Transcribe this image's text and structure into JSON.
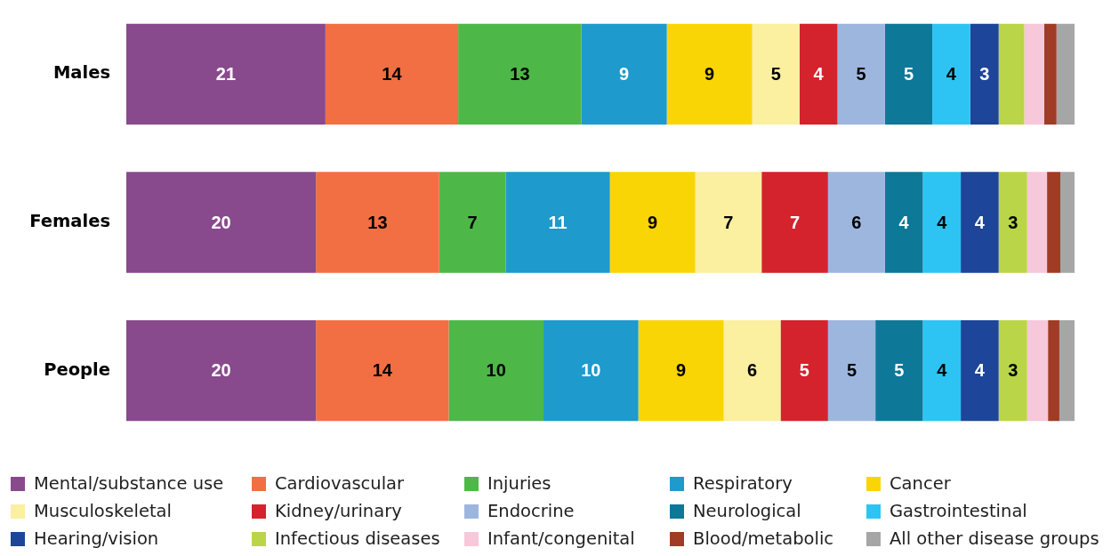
{
  "chart_data": {
    "type": "bar",
    "orientation": "horizontal",
    "stacked": true,
    "categories": [
      "Males",
      "Females",
      "People"
    ],
    "xlim": [
      0,
      100
    ],
    "tick_labels": "y",
    "legend": "bottom",
    "series": [
      {
        "name": "Mental/substance use",
        "color": "#884a8d",
        "values": [
          21,
          20,
          20
        ],
        "value_labels": [
          "21",
          "20",
          "20"
        ]
      },
      {
        "name": "Cardiovascular",
        "color": "#f26f43",
        "values": [
          14,
          13,
          14
        ],
        "value_labels": [
          "14",
          "13",
          "14"
        ]
      },
      {
        "name": "Injuries",
        "color": "#4db848",
        "values": [
          13,
          7,
          10
        ],
        "value_labels": [
          "13",
          "7",
          "10"
        ]
      },
      {
        "name": "Respiratory",
        "color": "#1e9acd",
        "values": [
          9,
          11,
          10
        ],
        "value_labels": [
          "9",
          "11",
          "10"
        ]
      },
      {
        "name": "Cancer",
        "color": "#fad505",
        "values": [
          9,
          9,
          9
        ],
        "value_labels": [
          "9",
          "9",
          "9"
        ]
      },
      {
        "name": "Musculoskeletal",
        "color": "#fbefa0",
        "values": [
          5,
          7,
          6
        ],
        "value_labels": [
          "5",
          "7",
          "6"
        ]
      },
      {
        "name": "Kidney/urinary",
        "color": "#d4232d",
        "values": [
          4,
          7,
          5
        ],
        "value_labels": [
          "4",
          "7",
          "5"
        ]
      },
      {
        "name": "Endocrine",
        "color": "#9db6de",
        "values": [
          5,
          6,
          5
        ],
        "value_labels": [
          "5",
          "6",
          "5"
        ]
      },
      {
        "name": "Neurological",
        "color": "#0e7898",
        "values": [
          5,
          4,
          5
        ],
        "value_labels": [
          "5",
          "4",
          "5"
        ]
      },
      {
        "name": "Gastrointestinal",
        "color": "#2dc4f3",
        "values": [
          4,
          4,
          4
        ],
        "value_labels": [
          "4",
          "4",
          "4"
        ]
      },
      {
        "name": "Hearing/vision",
        "color": "#1d459a",
        "values": [
          3,
          4,
          4
        ],
        "value_labels": [
          "3",
          "4",
          "4"
        ]
      },
      {
        "name": "Infectious diseases",
        "color": "#bbd548",
        "values": [
          2.7,
          3,
          3
        ],
        "value_labels": [
          null,
          "3",
          "3"
        ]
      },
      {
        "name": "Infant/congenital",
        "color": "#f7c7da",
        "values": [
          2.1,
          2.1,
          2.2
        ]
      },
      {
        "name": "Blood/metabolic",
        "color": "#a03c25",
        "values": [
          1.3,
          1.4,
          1.2
        ]
      },
      {
        "name": "All other disease groups",
        "color": "#a6a6a6",
        "values": [
          1.9,
          1.5,
          1.6
        ]
      }
    ]
  }
}
